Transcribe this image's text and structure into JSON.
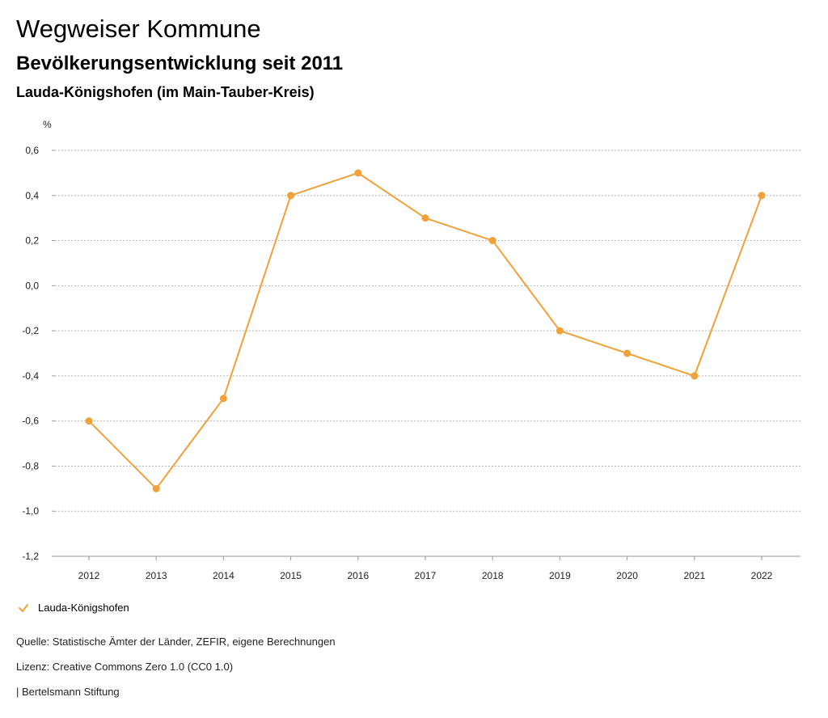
{
  "header": {
    "title": "Wegweiser Kommune",
    "subtitle": "Bevölkerungsentwicklung seit 2011",
    "region": "Lauda-Königshofen (im Main-Tauber-Kreis)"
  },
  "chart_data": {
    "type": "line",
    "title": "Bevölkerungsentwicklung seit 2011",
    "ylabel": "%",
    "xlabel": "",
    "x": [
      "2012",
      "2013",
      "2014",
      "2015",
      "2016",
      "2017",
      "2018",
      "2019",
      "2020",
      "2021",
      "2022"
    ],
    "series": [
      {
        "name": "Lauda-Königshofen",
        "color": "#f0a13a",
        "values": [
          -0.6,
          -0.9,
          -0.5,
          0.4,
          0.5,
          0.3,
          0.2,
          -0.2,
          -0.3,
          -0.4,
          0.4
        ]
      }
    ],
    "ylim": [
      -1.2,
      0.6
    ],
    "yticks": [
      {
        "value": 0.6,
        "label": "0,6"
      },
      {
        "value": 0.4,
        "label": "0,4"
      },
      {
        "value": 0.2,
        "label": "0,2"
      },
      {
        "value": 0.0,
        "label": "0,0"
      },
      {
        "value": -0.2,
        "label": "-0,2"
      },
      {
        "value": -0.4,
        "label": "-0,4"
      },
      {
        "value": -0.6,
        "label": "-0,6"
      },
      {
        "value": -0.8,
        "label": "-0,8"
      },
      {
        "value": -1.0,
        "label": "-1,0"
      },
      {
        "value": -1.2,
        "label": "-1,2"
      }
    ],
    "grid": true,
    "legend_position": "bottom-left"
  },
  "legend": {
    "label": "Lauda-Königshofen",
    "icon": "check-icon"
  },
  "footer": {
    "source": "Quelle: Statistische Ämter der Länder, ZEFIR, eigene Berechnungen",
    "license": "Lizenz: Creative Commons Zero 1.0 (CC0 1.0)",
    "brand": "| Bertelsmann Stiftung"
  }
}
